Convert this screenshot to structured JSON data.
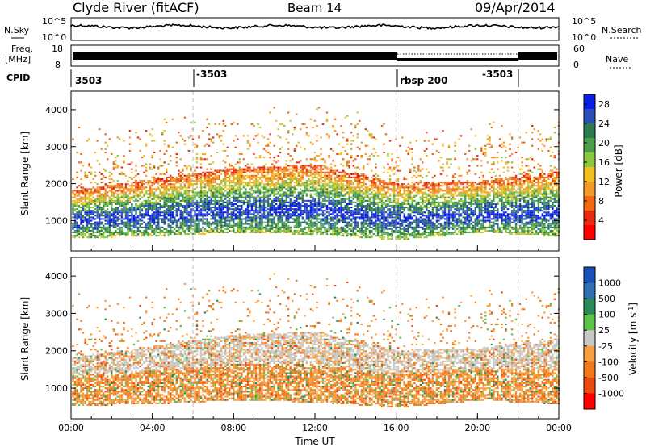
{
  "header": {
    "station": "Clyde River (fitACF)",
    "beam": "Beam 14",
    "date": "09/Apr/2014"
  },
  "panels": {
    "nsky": {
      "label": "N.Sky",
      "right_label": "N.Search",
      "ticks_left": [
        "10^5",
        "10^0"
      ],
      "ticks_right": [
        "10^5",
        "10^0"
      ]
    },
    "freq": {
      "label_top": "Freq.",
      "label_unit": "[MHz]",
      "right_label": "Nave",
      "ticks_left": [
        "18",
        "8"
      ],
      "ticks_right": [
        "60",
        "0"
      ]
    },
    "cpid": {
      "label": "CPID",
      "segments": [
        {
          "text": "3503",
          "start": 0
        },
        {
          "text": "-3503",
          "start": 6
        },
        {
          "text": "rbsp 200",
          "start": 16
        },
        {
          "text": "-3503",
          "start": 22
        }
      ]
    }
  },
  "chart_data": [
    {
      "type": "heatmap",
      "parameter": "Power",
      "ylabel": "Slant Range [km]",
      "xlabel": "",
      "x_ticks": [
        "00:00",
        "04:00",
        "08:00",
        "12:00",
        "16:00",
        "20:00",
        "00:00"
      ],
      "xlim_hours": [
        0,
        24
      ],
      "y_ticks": [
        1000,
        2000,
        3000,
        4000
      ],
      "ylim_km": [
        180,
        4500
      ],
      "colorbar": {
        "label": "Power [dB]",
        "ticks": [
          4,
          8,
          12,
          16,
          20,
          24,
          28
        ],
        "range": [
          0,
          30
        ],
        "colors": [
          "#0a1ee6",
          "#2a4fb8",
          "#2f7a4f",
          "#4aa04a",
          "#8dc63f",
          "#f0c020",
          "#f29a2a",
          "#f06a10",
          "#e82a10",
          "#ff0000"
        ]
      },
      "band_profile": [
        {
          "hour": 0,
          "min_km": 500,
          "max_km": 1800
        },
        {
          "hour": 4,
          "min_km": 550,
          "max_km": 2100
        },
        {
          "hour": 8,
          "min_km": 650,
          "max_km": 2400
        },
        {
          "hour": 12,
          "min_km": 600,
          "max_km": 2500
        },
        {
          "hour": 16,
          "min_km": 450,
          "max_km": 2000
        },
        {
          "hour": 20,
          "min_km": 650,
          "max_km": 2050
        },
        {
          "hour": 24,
          "min_km": 550,
          "max_km": 2300
        }
      ],
      "dominant_value": "20-28 dB near 700-1300 km"
    },
    {
      "type": "heatmap",
      "parameter": "Velocity",
      "ylabel": "Slant Range [km]",
      "xlabel": "Time UT",
      "x_ticks": [
        "00:00",
        "04:00",
        "08:00",
        "12:00",
        "16:00",
        "20:00",
        "00:00"
      ],
      "xlim_hours": [
        0,
        24
      ],
      "y_ticks": [
        1000,
        2000,
        3000,
        4000
      ],
      "ylim_km": [
        180,
        4500
      ],
      "colorbar": {
        "label": "Velocity [m s-1]",
        "ticks": [
          1000,
          500,
          100,
          25,
          -25,
          -100,
          -500,
          -1000
        ],
        "colors": [
          "#1a4fb8",
          "#2f6fb0",
          "#2a8a5a",
          "#5cc24a",
          "#c8c8c4",
          "#f5a040",
          "#f07a1a",
          "#e84a10",
          "#ff0000"
        ]
      },
      "dominant_value": "-100 to -500 m/s (orange) near 700-1200 km; ground scatter (gray) 1300-1900 km"
    }
  ]
}
